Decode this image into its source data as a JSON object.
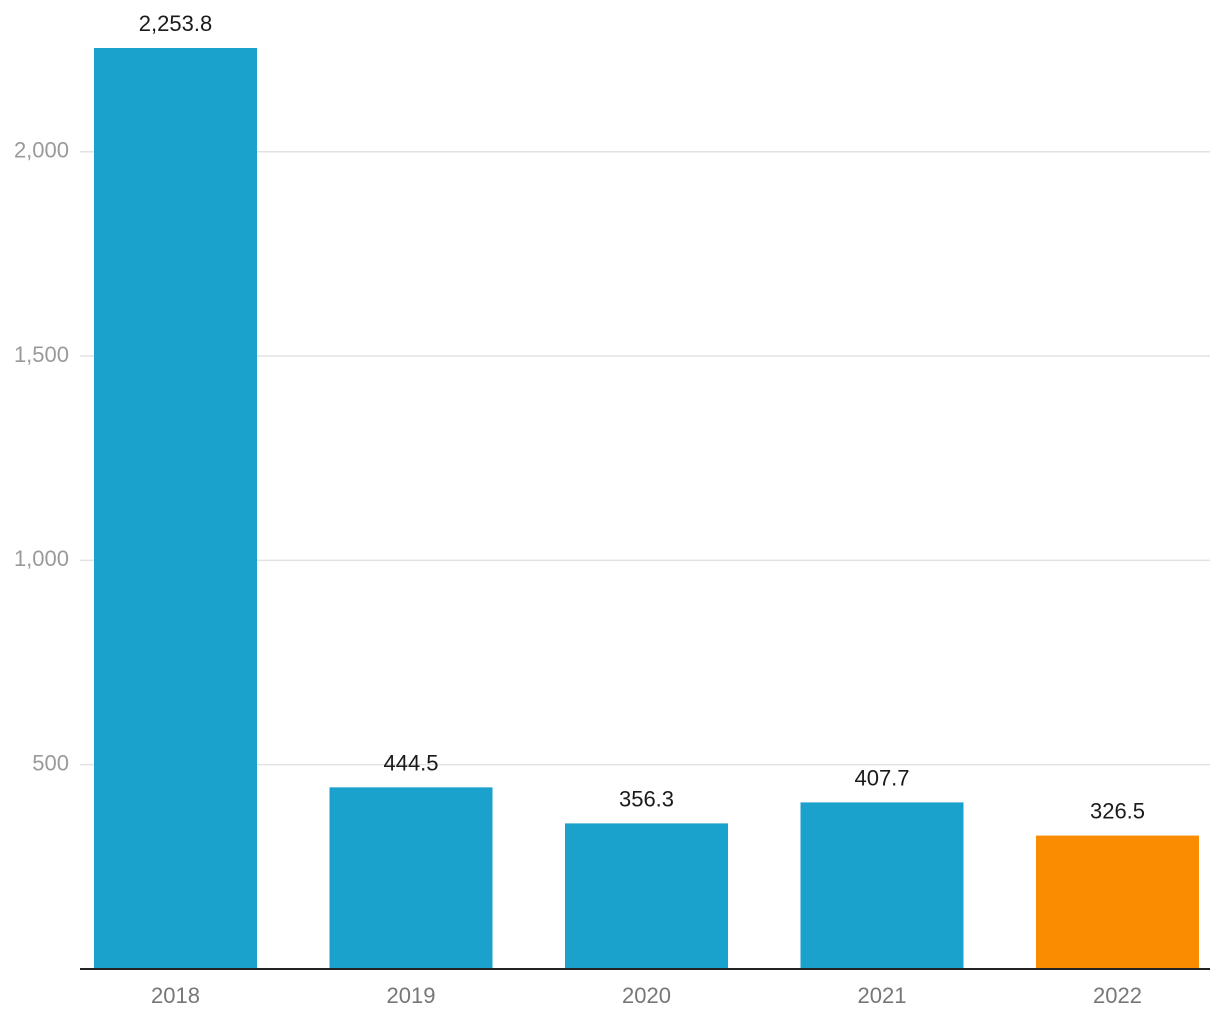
{
  "chart_data": {
    "type": "bar",
    "title": "",
    "xlabel": "",
    "ylabel": "",
    "categories": [
      "2018",
      "2019",
      "2020",
      "2021",
      "2022"
    ],
    "values": [
      2253.8,
      444.5,
      356.3,
      407.7,
      326.5
    ],
    "value_labels": [
      "2,253.8",
      "444.5",
      "356.3",
      "407.7",
      "326.5"
    ],
    "bar_colors": [
      "#1aa1cc",
      "#1aa1cc",
      "#1aa1cc",
      "#1aa1cc",
      "#f98c00"
    ],
    "ylim": [
      0,
      2253.8
    ],
    "yticks": [
      500,
      1000,
      1500,
      2000
    ],
    "ytick_labels": [
      "500",
      "1,000",
      "1,500",
      "2,000"
    ],
    "grid": true,
    "legend": "none"
  }
}
